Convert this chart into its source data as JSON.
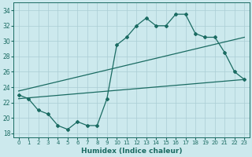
{
  "xlabel": "Humidex (Indice chaleur)",
  "bg_color": "#cce9ed",
  "grid_color": "#aacdd4",
  "line_color": "#1a6b62",
  "xlim": [
    -0.5,
    23.5
  ],
  "ylim": [
    17.5,
    35.0
  ],
  "yticks": [
    18,
    20,
    22,
    24,
    26,
    28,
    30,
    32,
    34
  ],
  "xticks": [
    0,
    1,
    2,
    3,
    4,
    5,
    6,
    7,
    8,
    9,
    10,
    11,
    12,
    13,
    14,
    15,
    16,
    17,
    18,
    19,
    20,
    21,
    22,
    23
  ],
  "line1_x": [
    0,
    1,
    2,
    3,
    4,
    5,
    6,
    7,
    8,
    9,
    10,
    11,
    12,
    13,
    14,
    15,
    16,
    17,
    18,
    19,
    20,
    21,
    22,
    23
  ],
  "line1_y": [
    23.0,
    22.5,
    21.0,
    20.5,
    19.0,
    18.5,
    19.5,
    19.0,
    19.0,
    22.5,
    29.5,
    30.5,
    32.0,
    33.0,
    32.0,
    32.0,
    33.5,
    33.5,
    31.0,
    30.5,
    30.5,
    28.5,
    26.0,
    25.0
  ],
  "line2_x": [
    0,
    23
  ],
  "line2_y": [
    22.5,
    25.0
  ],
  "line3_x": [
    0,
    23
  ],
  "line3_y": [
    23.5,
    30.5
  ],
  "marker": "D",
  "markersize": 2.0,
  "linewidth": 0.9
}
